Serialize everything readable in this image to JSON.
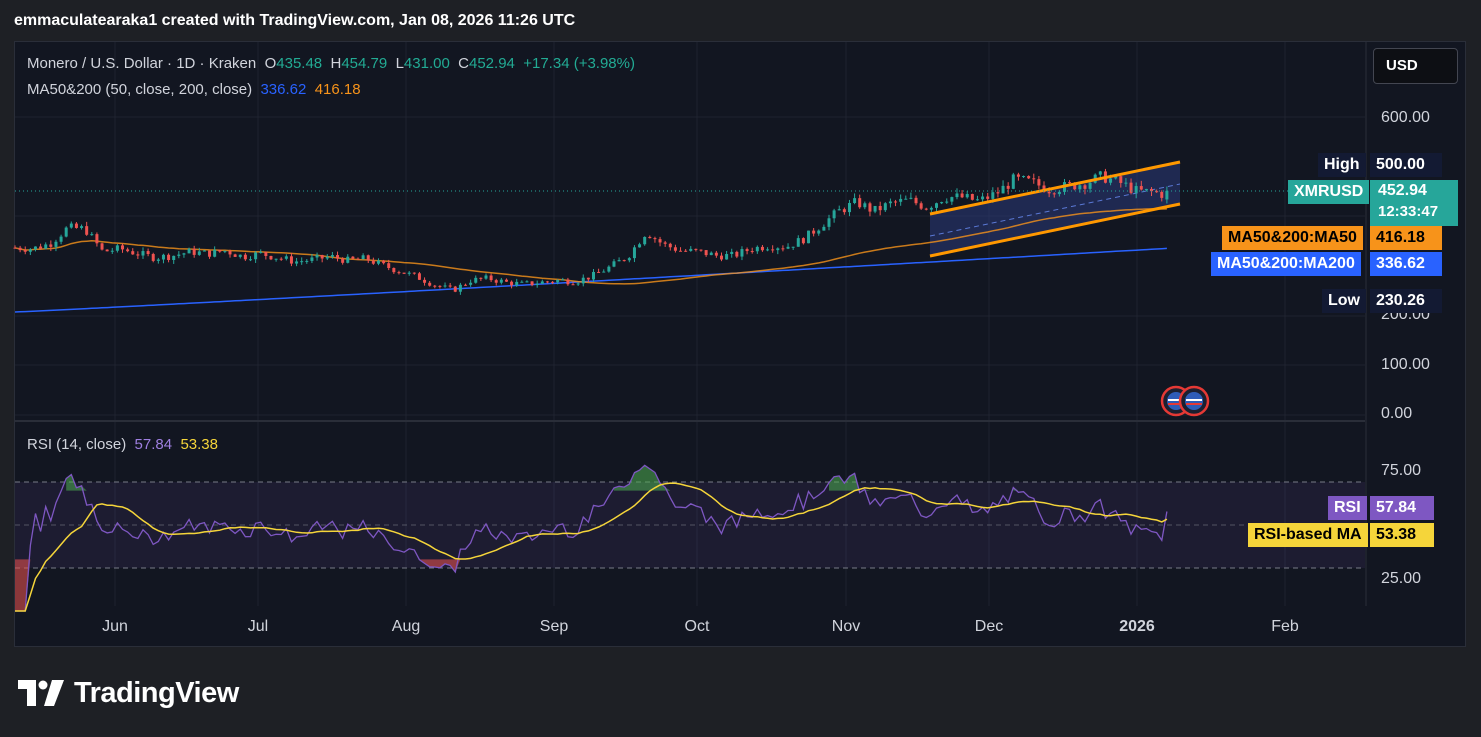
{
  "header": {
    "attribution": "emmaculatearaka1 created with TradingView.com, Jan 08, 2026 11:26 UTC"
  },
  "legend": {
    "title": "Monero / U.S. Dollar · 1D · Kraken",
    "o_label": "O",
    "o_value": "435.48",
    "h_label": "H",
    "h_value": "454.79",
    "l_label": "L",
    "l_value": "431.00",
    "c_label": "C",
    "c_value": "452.94",
    "change": "+17.34 (+3.98%)",
    "ma_label": "MA50&200 (50, close, 200, close)",
    "ma200_value": "336.62",
    "ma50_value": "416.18",
    "rsi_label": "RSI (14, close)",
    "rsi_value": "57.84",
    "rsi_ma_value": "53.38"
  },
  "currency_button": "USD",
  "axis": {
    "price_ticks": [
      "600.00",
      "200.00",
      "100.00",
      "0.00"
    ],
    "rsi_ticks": [
      "75.00",
      "25.00"
    ],
    "months": [
      "Jun",
      "Jul",
      "Aug",
      "Sep",
      "Oct",
      "Nov",
      "Dec",
      "2026",
      "Feb"
    ]
  },
  "tags": {
    "high_label": "High",
    "high_value": "500.00",
    "symbol": "XMRUSD",
    "price": "452.94",
    "countdown": "12:33:47",
    "ma50_label": "MA50&200:MA50",
    "ma50_value": "416.18",
    "ma200_label": "MA50&200:MA200",
    "ma200_value": "336.62",
    "low_label": "Low",
    "low_value": "230.26",
    "rsi_label": "RSI",
    "rsi_value": "57.84",
    "rsi_ma_label": "RSI-based MA",
    "rsi_ma_value": "53.38"
  },
  "colors": {
    "up": "#26a69a",
    "down": "#ef5350",
    "ma50": "#f7931a",
    "ma200": "#2962ff",
    "rsi": "#7e57c2",
    "rsi_ma": "#f5d53a",
    "channel": "#ff9800"
  },
  "brand": {
    "name": "TradingView"
  },
  "chart_data": {
    "type": "candlestick",
    "symbol": "XMRUSD",
    "interval": "1D",
    "exchange": "Kraken",
    "price_axis": {
      "ticks": [
        0,
        100,
        200,
        600
      ],
      "visible_labels": [
        "600.00",
        "200.00",
        "100.00",
        "0.00"
      ]
    },
    "x_months": [
      "Jun",
      "Jul",
      "Aug",
      "Sep",
      "Oct",
      "Nov",
      "Dec",
      "2026",
      "Feb"
    ],
    "close_path": [
      [
        0,
        338
      ],
      [
        6,
        336
      ],
      [
        12,
        346
      ],
      [
        18,
        378
      ],
      [
        24,
        376
      ],
      [
        30,
        330
      ],
      [
        36,
        336
      ],
      [
        42,
        326
      ],
      [
        48,
        318
      ],
      [
        54,
        322
      ],
      [
        60,
        330
      ],
      [
        66,
        326
      ],
      [
        72,
        332
      ],
      [
        78,
        320
      ],
      [
        84,
        326
      ],
      [
        90,
        318
      ],
      [
        96,
        310
      ],
      [
        102,
        314
      ],
      [
        108,
        320
      ],
      [
        114,
        312
      ],
      [
        120,
        316
      ],
      [
        126,
        302
      ],
      [
        132,
        290
      ],
      [
        138,
        278
      ],
      [
        144,
        262
      ],
      [
        150,
        252
      ],
      [
        156,
        272
      ],
      [
        162,
        276
      ],
      [
        168,
        268
      ],
      [
        174,
        264
      ],
      [
        180,
        268
      ],
      [
        186,
        272
      ],
      [
        192,
        270
      ],
      [
        198,
        282
      ],
      [
        204,
        300
      ],
      [
        210,
        322
      ],
      [
        216,
        370
      ],
      [
        222,
        344
      ],
      [
        228,
        332
      ],
      [
        234,
        330
      ],
      [
        240,
        322
      ],
      [
        246,
        322
      ],
      [
        252,
        336
      ],
      [
        258,
        342
      ],
      [
        264,
        340
      ],
      [
        270,
        356
      ],
      [
        276,
        384
      ],
      [
        282,
        412
      ],
      [
        288,
        430
      ],
      [
        294,
        412
      ],
      [
        300,
        428
      ],
      [
        306,
        434
      ],
      [
        312,
        420
      ],
      [
        318,
        440
      ],
      [
        324,
        440
      ],
      [
        330,
        432
      ],
      [
        336,
        448
      ],
      [
        342,
        476
      ],
      [
        348,
        470
      ],
      [
        354,
        456
      ],
      [
        360,
        462
      ],
      [
        366,
        468
      ],
      [
        372,
        482
      ],
      [
        378,
        470
      ],
      [
        384,
        452
      ],
      [
        390,
        450
      ],
      [
        396,
        442
      ]
    ],
    "ma50": {
      "name": "MA50",
      "last": 416.18
    },
    "ma200": {
      "name": "MA200",
      "last": 336.62
    },
    "session": {
      "open": 435.48,
      "high": 454.79,
      "low": 431.0,
      "close": 452.94,
      "change": 17.34,
      "change_pct": 3.98
    },
    "visible_range": {
      "high": 500.0,
      "low": 230.26
    }
  },
  "rsi_data": {
    "type": "line",
    "length": 14,
    "source": "close",
    "last": 57.84,
    "ma_last": 53.38,
    "bands": [
      70,
      50,
      30
    ],
    "ticks": [
      25,
      75
    ]
  }
}
